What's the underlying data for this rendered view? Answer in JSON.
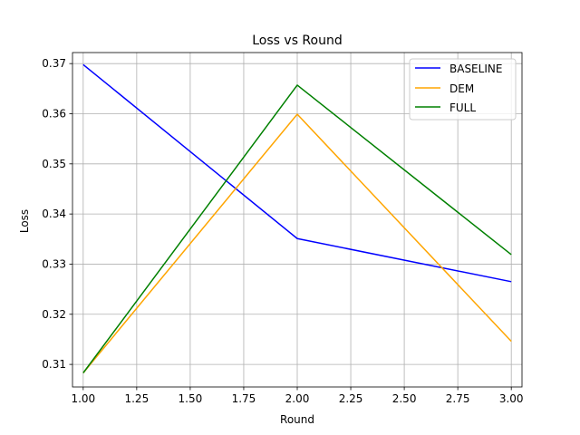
{
  "chart_data": {
    "type": "line",
    "title": "Loss vs Round",
    "xlabel": "Round",
    "ylabel": "Loss",
    "x": [
      1.0,
      2.0,
      3.0
    ],
    "xlim": [
      0.95,
      3.05
    ],
    "ylim": [
      0.3055,
      0.3722
    ],
    "xticks": [
      "1.00",
      "1.25",
      "1.50",
      "1.75",
      "2.00",
      "2.25",
      "2.50",
      "2.75",
      "3.00"
    ],
    "yticks": [
      "0.31",
      "0.32",
      "0.33",
      "0.34",
      "0.35",
      "0.36",
      "0.37"
    ],
    "grid": true,
    "legend_position": "top-right",
    "series": [
      {
        "name": "BASELINE",
        "color": "#0000ff",
        "values": [
          0.3698,
          0.3351,
          0.3265
        ]
      },
      {
        "name": "DEM",
        "color": "#ffa500",
        "values": [
          0.3083,
          0.3599,
          0.3146
        ]
      },
      {
        "name": "FULL",
        "color": "#008000",
        "values": [
          0.3083,
          0.3657,
          0.3319
        ]
      }
    ]
  }
}
